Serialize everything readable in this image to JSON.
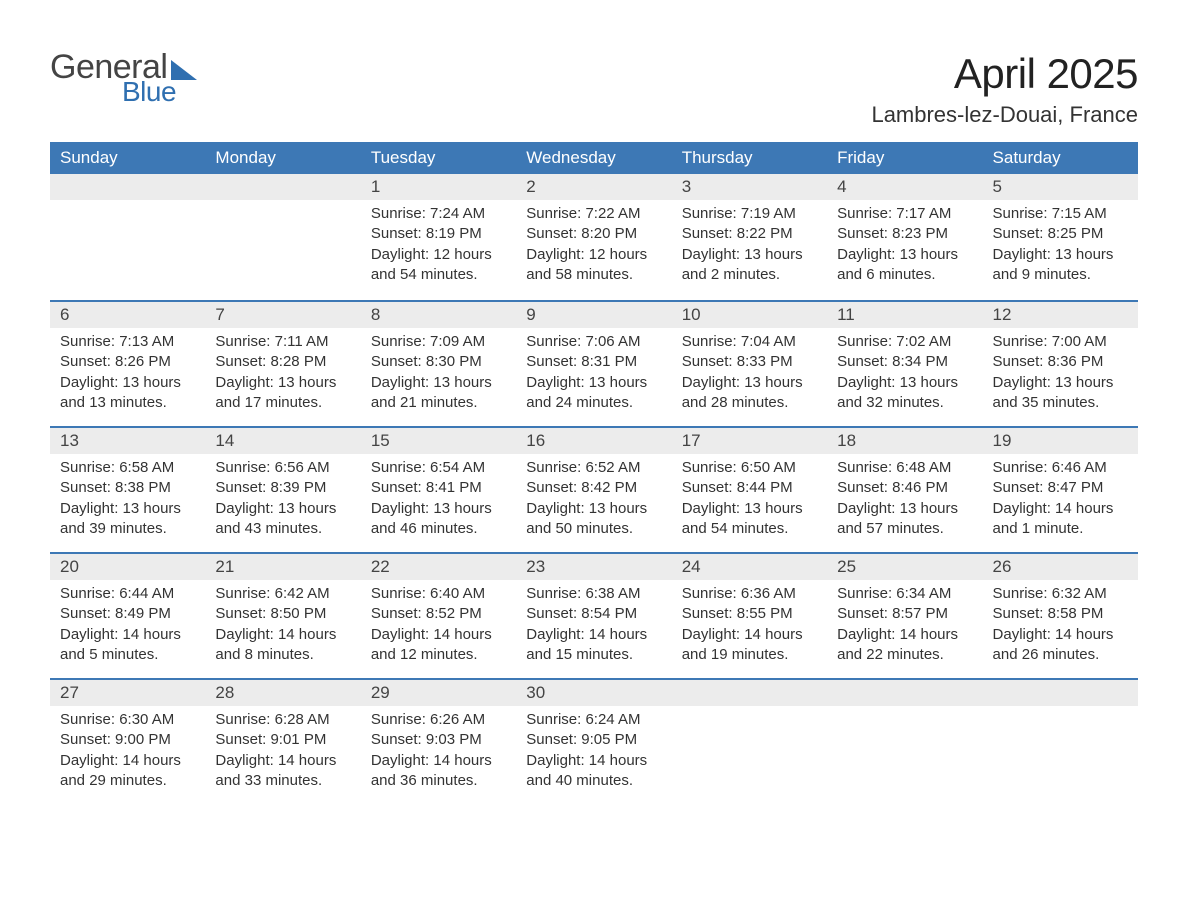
{
  "brand": {
    "word1": "General",
    "word2": "Blue",
    "accent_color": "#2f6fb0"
  },
  "title": "April 2025",
  "location": "Lambres-lez-Douai, France",
  "header_bg": "#3d78b5",
  "header_fg": "#ffffff",
  "daynum_bg": "#ececec",
  "week_border_color": "#3d78b5",
  "text_color": "#333333",
  "background_color": "#ffffff",
  "font_family": "Arial",
  "title_fontsize": 42,
  "location_fontsize": 22,
  "header_fontsize": 17,
  "body_fontsize": 15,
  "day_names": [
    "Sunday",
    "Monday",
    "Tuesday",
    "Wednesday",
    "Thursday",
    "Friday",
    "Saturday"
  ],
  "weeks": [
    [
      null,
      null,
      {
        "n": "1",
        "sr": "Sunrise: 7:24 AM",
        "ss": "Sunset: 8:19 PM",
        "d1": "Daylight: 12 hours",
        "d2": "and 54 minutes."
      },
      {
        "n": "2",
        "sr": "Sunrise: 7:22 AM",
        "ss": "Sunset: 8:20 PM",
        "d1": "Daylight: 12 hours",
        "d2": "and 58 minutes."
      },
      {
        "n": "3",
        "sr": "Sunrise: 7:19 AM",
        "ss": "Sunset: 8:22 PM",
        "d1": "Daylight: 13 hours",
        "d2": "and 2 minutes."
      },
      {
        "n": "4",
        "sr": "Sunrise: 7:17 AM",
        "ss": "Sunset: 8:23 PM",
        "d1": "Daylight: 13 hours",
        "d2": "and 6 minutes."
      },
      {
        "n": "5",
        "sr": "Sunrise: 7:15 AM",
        "ss": "Sunset: 8:25 PM",
        "d1": "Daylight: 13 hours",
        "d2": "and 9 minutes."
      }
    ],
    [
      {
        "n": "6",
        "sr": "Sunrise: 7:13 AM",
        "ss": "Sunset: 8:26 PM",
        "d1": "Daylight: 13 hours",
        "d2": "and 13 minutes."
      },
      {
        "n": "7",
        "sr": "Sunrise: 7:11 AM",
        "ss": "Sunset: 8:28 PM",
        "d1": "Daylight: 13 hours",
        "d2": "and 17 minutes."
      },
      {
        "n": "8",
        "sr": "Sunrise: 7:09 AM",
        "ss": "Sunset: 8:30 PM",
        "d1": "Daylight: 13 hours",
        "d2": "and 21 minutes."
      },
      {
        "n": "9",
        "sr": "Sunrise: 7:06 AM",
        "ss": "Sunset: 8:31 PM",
        "d1": "Daylight: 13 hours",
        "d2": "and 24 minutes."
      },
      {
        "n": "10",
        "sr": "Sunrise: 7:04 AM",
        "ss": "Sunset: 8:33 PM",
        "d1": "Daylight: 13 hours",
        "d2": "and 28 minutes."
      },
      {
        "n": "11",
        "sr": "Sunrise: 7:02 AM",
        "ss": "Sunset: 8:34 PM",
        "d1": "Daylight: 13 hours",
        "d2": "and 32 minutes."
      },
      {
        "n": "12",
        "sr": "Sunrise: 7:00 AM",
        "ss": "Sunset: 8:36 PM",
        "d1": "Daylight: 13 hours",
        "d2": "and 35 minutes."
      }
    ],
    [
      {
        "n": "13",
        "sr": "Sunrise: 6:58 AM",
        "ss": "Sunset: 8:38 PM",
        "d1": "Daylight: 13 hours",
        "d2": "and 39 minutes."
      },
      {
        "n": "14",
        "sr": "Sunrise: 6:56 AM",
        "ss": "Sunset: 8:39 PM",
        "d1": "Daylight: 13 hours",
        "d2": "and 43 minutes."
      },
      {
        "n": "15",
        "sr": "Sunrise: 6:54 AM",
        "ss": "Sunset: 8:41 PM",
        "d1": "Daylight: 13 hours",
        "d2": "and 46 minutes."
      },
      {
        "n": "16",
        "sr": "Sunrise: 6:52 AM",
        "ss": "Sunset: 8:42 PM",
        "d1": "Daylight: 13 hours",
        "d2": "and 50 minutes."
      },
      {
        "n": "17",
        "sr": "Sunrise: 6:50 AM",
        "ss": "Sunset: 8:44 PM",
        "d1": "Daylight: 13 hours",
        "d2": "and 54 minutes."
      },
      {
        "n": "18",
        "sr": "Sunrise: 6:48 AM",
        "ss": "Sunset: 8:46 PM",
        "d1": "Daylight: 13 hours",
        "d2": "and 57 minutes."
      },
      {
        "n": "19",
        "sr": "Sunrise: 6:46 AM",
        "ss": "Sunset: 8:47 PM",
        "d1": "Daylight: 14 hours",
        "d2": "and 1 minute."
      }
    ],
    [
      {
        "n": "20",
        "sr": "Sunrise: 6:44 AM",
        "ss": "Sunset: 8:49 PM",
        "d1": "Daylight: 14 hours",
        "d2": "and 5 minutes."
      },
      {
        "n": "21",
        "sr": "Sunrise: 6:42 AM",
        "ss": "Sunset: 8:50 PM",
        "d1": "Daylight: 14 hours",
        "d2": "and 8 minutes."
      },
      {
        "n": "22",
        "sr": "Sunrise: 6:40 AM",
        "ss": "Sunset: 8:52 PM",
        "d1": "Daylight: 14 hours",
        "d2": "and 12 minutes."
      },
      {
        "n": "23",
        "sr": "Sunrise: 6:38 AM",
        "ss": "Sunset: 8:54 PM",
        "d1": "Daylight: 14 hours",
        "d2": "and 15 minutes."
      },
      {
        "n": "24",
        "sr": "Sunrise: 6:36 AM",
        "ss": "Sunset: 8:55 PM",
        "d1": "Daylight: 14 hours",
        "d2": "and 19 minutes."
      },
      {
        "n": "25",
        "sr": "Sunrise: 6:34 AM",
        "ss": "Sunset: 8:57 PM",
        "d1": "Daylight: 14 hours",
        "d2": "and 22 minutes."
      },
      {
        "n": "26",
        "sr": "Sunrise: 6:32 AM",
        "ss": "Sunset: 8:58 PM",
        "d1": "Daylight: 14 hours",
        "d2": "and 26 minutes."
      }
    ],
    [
      {
        "n": "27",
        "sr": "Sunrise: 6:30 AM",
        "ss": "Sunset: 9:00 PM",
        "d1": "Daylight: 14 hours",
        "d2": "and 29 minutes."
      },
      {
        "n": "28",
        "sr": "Sunrise: 6:28 AM",
        "ss": "Sunset: 9:01 PM",
        "d1": "Daylight: 14 hours",
        "d2": "and 33 minutes."
      },
      {
        "n": "29",
        "sr": "Sunrise: 6:26 AM",
        "ss": "Sunset: 9:03 PM",
        "d1": "Daylight: 14 hours",
        "d2": "and 36 minutes."
      },
      {
        "n": "30",
        "sr": "Sunrise: 6:24 AM",
        "ss": "Sunset: 9:05 PM",
        "d1": "Daylight: 14 hours",
        "d2": "and 40 minutes."
      },
      null,
      null,
      null
    ]
  ]
}
